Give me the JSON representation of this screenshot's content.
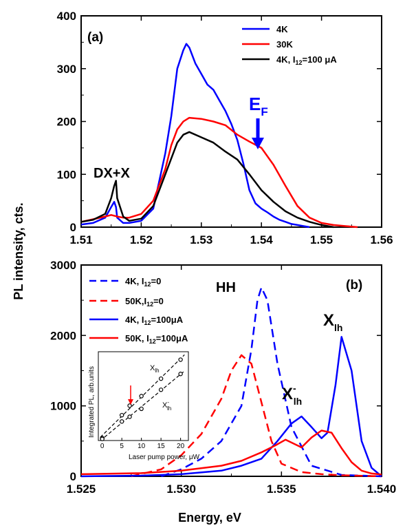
{
  "chart_data": [
    {
      "panel": "(a)",
      "type": "line",
      "xlim": [
        1.51,
        1.56
      ],
      "ylim": [
        0,
        400
      ],
      "xticks": [
        "1.51",
        "1.52",
        "1.53",
        "1.54",
        "1.55",
        "1.56"
      ],
      "yticks": [
        "0",
        "100",
        "200",
        "300",
        "400"
      ],
      "legend_position": "top-right",
      "series": [
        {
          "name": "4K",
          "color": "#0000ff",
          "style": "solid",
          "x": [
            1.51,
            1.512,
            1.514,
            1.515,
            1.5155,
            1.5158,
            1.516,
            1.517,
            1.518,
            1.52,
            1.522,
            1.524,
            1.525,
            1.526,
            1.527,
            1.5275,
            1.528,
            1.529,
            1.53,
            1.531,
            1.532,
            1.533,
            1.534,
            1.535,
            1.536,
            1.537,
            1.538,
            1.539,
            1.54,
            1.541,
            1.542,
            1.543,
            1.544,
            1.545,
            1.546,
            1.547,
            1.548
          ],
          "y": [
            5,
            8,
            18,
            38,
            48,
            38,
            18,
            8,
            8,
            12,
            35,
            140,
            210,
            300,
            335,
            347,
            340,
            310,
            290,
            270,
            260,
            240,
            220,
            195,
            165,
            120,
            70,
            45,
            35,
            28,
            20,
            14,
            10,
            6,
            4,
            2,
            0
          ]
        },
        {
          "name": "30K",
          "color": "#ff0000",
          "style": "solid",
          "x": [
            1.51,
            1.512,
            1.514,
            1.515,
            1.516,
            1.517,
            1.518,
            1.52,
            1.522,
            1.524,
            1.525,
            1.526,
            1.527,
            1.528,
            1.53,
            1.532,
            1.534,
            1.536,
            1.538,
            1.54,
            1.542,
            1.544,
            1.546,
            1.548,
            1.55,
            1.552,
            1.554,
            1.556
          ],
          "y": [
            10,
            15,
            20,
            23,
            20,
            18,
            18,
            25,
            50,
            110,
            155,
            185,
            200,
            207,
            205,
            200,
            193,
            175,
            162,
            150,
            118,
            78,
            40,
            18,
            8,
            4,
            2,
            0
          ]
        },
        {
          "name": "4K, I12=100 μA",
          "color": "#000000",
          "style": "solid",
          "x": [
            1.51,
            1.512,
            1.514,
            1.515,
            1.5155,
            1.5158,
            1.516,
            1.517,
            1.518,
            1.52,
            1.522,
            1.524,
            1.525,
            1.526,
            1.527,
            1.528,
            1.53,
            1.532,
            1.534,
            1.536,
            1.538,
            1.54,
            1.542,
            1.544,
            1.546,
            1.548,
            1.55,
            1.552
          ],
          "y": [
            10,
            14,
            25,
            55,
            78,
            88,
            55,
            20,
            12,
            16,
            40,
            100,
            130,
            160,
            175,
            180,
            170,
            160,
            143,
            128,
            100,
            70,
            48,
            30,
            18,
            10,
            4,
            0
          ]
        }
      ],
      "annotations": [
        "DX+X",
        "E",
        "F"
      ]
    },
    {
      "panel": "(b)",
      "type": "line",
      "xlim": [
        1.525,
        1.54
      ],
      "ylim": [
        0,
        3000
      ],
      "xticks": [
        "1.525",
        "1.530",
        "1.535",
        "1.540"
      ],
      "yticks": [
        "0",
        "1000",
        "2000",
        "3000"
      ],
      "xlabel": "Energy, eV",
      "ylabel": "PL intensity, cts.",
      "legend_position": "top-left",
      "series": [
        {
          "name": "4K, I12=0",
          "color": "#0000ff",
          "style": "dashed",
          "x": [
            1.529,
            1.53,
            1.531,
            1.532,
            1.533,
            1.5335,
            1.5338,
            1.534,
            1.5343,
            1.5348,
            1.5355,
            1.5365,
            1.538,
            1.54
          ],
          "y": [
            0,
            100,
            250,
            500,
            1000,
            1800,
            2500,
            2680,
            2500,
            1600,
            700,
            150,
            20,
            0
          ]
        },
        {
          "name": "50K,I12=0",
          "color": "#ff0000",
          "style": "dashed",
          "x": [
            1.5275,
            1.529,
            1.53,
            1.531,
            1.532,
            1.5325,
            1.533,
            1.5335,
            1.534,
            1.5345,
            1.535,
            1.536,
            1.537,
            1.538,
            1.54
          ],
          "y": [
            0,
            100,
            300,
            600,
            1100,
            1500,
            1720,
            1600,
            1050,
            500,
            180,
            60,
            30,
            15,
            0
          ]
        },
        {
          "name": "4K, I12=100μA",
          "color": "#0000ff",
          "style": "solid",
          "x": [
            1.525,
            1.528,
            1.53,
            1.532,
            1.533,
            1.534,
            1.5348,
            1.5355,
            1.536,
            1.5365,
            1.537,
            1.5373,
            1.5377,
            1.538,
            1.5385,
            1.539,
            1.5395,
            1.54
          ],
          "y": [
            0,
            10,
            30,
            80,
            150,
            250,
            500,
            750,
            850,
            700,
            540,
            620,
            1300,
            1980,
            1500,
            500,
            120,
            0
          ]
        },
        {
          "name": "50K, I12=100μA",
          "color": "#ff0000",
          "style": "solid",
          "x": [
            1.525,
            1.528,
            1.53,
            1.532,
            1.533,
            1.534,
            1.5347,
            1.5352,
            1.536,
            1.5365,
            1.537,
            1.5375,
            1.538,
            1.5385,
            1.539,
            1.5395,
            1.54
          ],
          "y": [
            30,
            45,
            80,
            150,
            220,
            340,
            440,
            520,
            410,
            550,
            650,
            620,
            400,
            200,
            80,
            40,
            25
          ]
        }
      ],
      "annotations": [
        "HH",
        "X",
        "lh",
        "-"
      ],
      "inset": {
        "xlabel": "Laser pump power, μW",
        "ylabel": "Integrated PL, arb.units",
        "xticks": [
          "0",
          "5",
          "10",
          "15",
          "20"
        ],
        "series": [
          {
            "name": "X_lh",
            "x": [
              0,
              5,
              7,
              10,
              15,
              20
            ],
            "y": [
              0.15,
              1.6,
              2.2,
              2.8,
              3.9,
              5.1
            ]
          },
          {
            "name": "X-_lh",
            "x": [
              0,
              5,
              7,
              10,
              15,
              20
            ],
            "y": [
              0.1,
              1.2,
              1.5,
              2.0,
              3.2,
              4.2
            ]
          }
        ],
        "labels": {
          "x_lh": "X",
          "x_lh_sub": "lh",
          "xm_lh": "X",
          "xm_lh_sup": "-",
          "xm_lh_sub": "lh"
        }
      }
    }
  ],
  "text": {
    "panel_a": "(a)",
    "panel_b": "(b)",
    "legend_a": [
      "4K",
      "30K",
      "4K, I",
      "12",
      "=100 μA"
    ],
    "legend_b1": [
      "4K, I",
      "12",
      "=0"
    ],
    "legend_b2": [
      "50K,I",
      "12",
      "=0"
    ],
    "legend_b3": [
      "4K, I",
      "12",
      "=100μA"
    ],
    "legend_b4": [
      "50K, I",
      "12",
      "=100μA"
    ],
    "dxx": "DX+X",
    "ef_main": "E",
    "ef_sub": "F",
    "hh": "HH",
    "xlh_main": "X",
    "xlh_sub": "lh",
    "xm_main": "X",
    "xm_sup": "-",
    "xm_sub": "lh",
    "xlabel": "Energy, eV",
    "ylabel": "PL intensity, cts.",
    "inset_xlabel": "Laser pump power, μW",
    "inset_ylabel": "Integrated PL, arb.units"
  }
}
